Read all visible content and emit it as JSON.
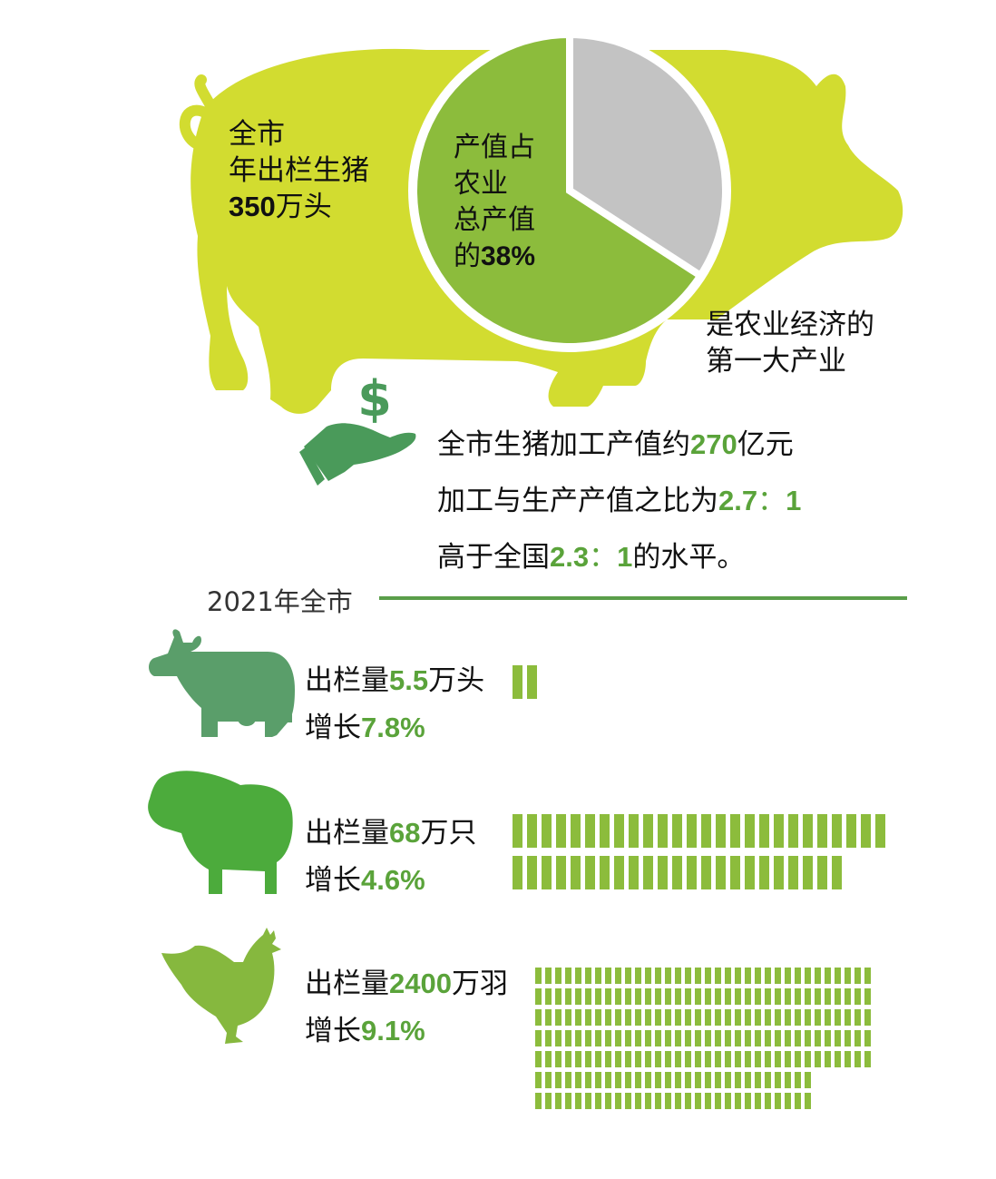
{
  "colors": {
    "pig": "#d2dc30",
    "pie_green": "#8cbc3c",
    "pie_gray": "#c3c3c3",
    "dark_green": "#4a9a5a",
    "cow": "#5a9e6a",
    "sheep": "#4cab3c",
    "chicken": "#86b83e",
    "bar": "#8cbc3c",
    "line": "#5a9e4a"
  },
  "pig_section": {
    "left_line1": "全市",
    "left_line2": "年出栏生猪",
    "left_num": "350",
    "left_unit": "万头",
    "pie_line1": "产值占",
    "pie_line2": "农业",
    "pie_line3": "总产值",
    "pie_line4_prefix": "的",
    "pie_line4_num": "38%",
    "right_line1": "是农业经济的",
    "right_line2": "第一大产业"
  },
  "money_section": {
    "icon": "dollar-hand-icon",
    "line1_prefix": "全市生猪加工产值约",
    "line1_num": "270",
    "line1_suffix": "亿元",
    "line2_prefix": "加工与生产产值之比为",
    "line2_num_a": "2.7",
    "line2_colon": "：",
    "line2_num_b": "1",
    "line3_prefix": "高于全国",
    "line3_num_a": "2.3",
    "line3_colon": "：",
    "line3_num_b": "1",
    "line3_suffix": "的水平。"
  },
  "year_header": "2021年全市",
  "animals": [
    {
      "icon": "cow-icon",
      "label": "出栏量",
      "num": "5.5",
      "unit": "万头",
      "growth_label": "增长",
      "growth": "7.8%"
    },
    {
      "icon": "sheep-icon",
      "label": "出栏量",
      "num": "68",
      "unit": "万只",
      "growth_label": "增长",
      "growth": "4.6%"
    },
    {
      "icon": "chicken-icon",
      "label": "出栏量",
      "num": "2400",
      "unit": "万羽",
      "growth_label": "增长",
      "growth": "9.1%"
    }
  ],
  "chart_data": [
    {
      "type": "pie",
      "values": [
        38,
        62
      ]
    },
    {
      "type": "bar",
      "categories": [
        "牛",
        "羊",
        "鸡"
      ],
      "values": [
        5.5,
        68,
        2400
      ]
    }
  ]
}
